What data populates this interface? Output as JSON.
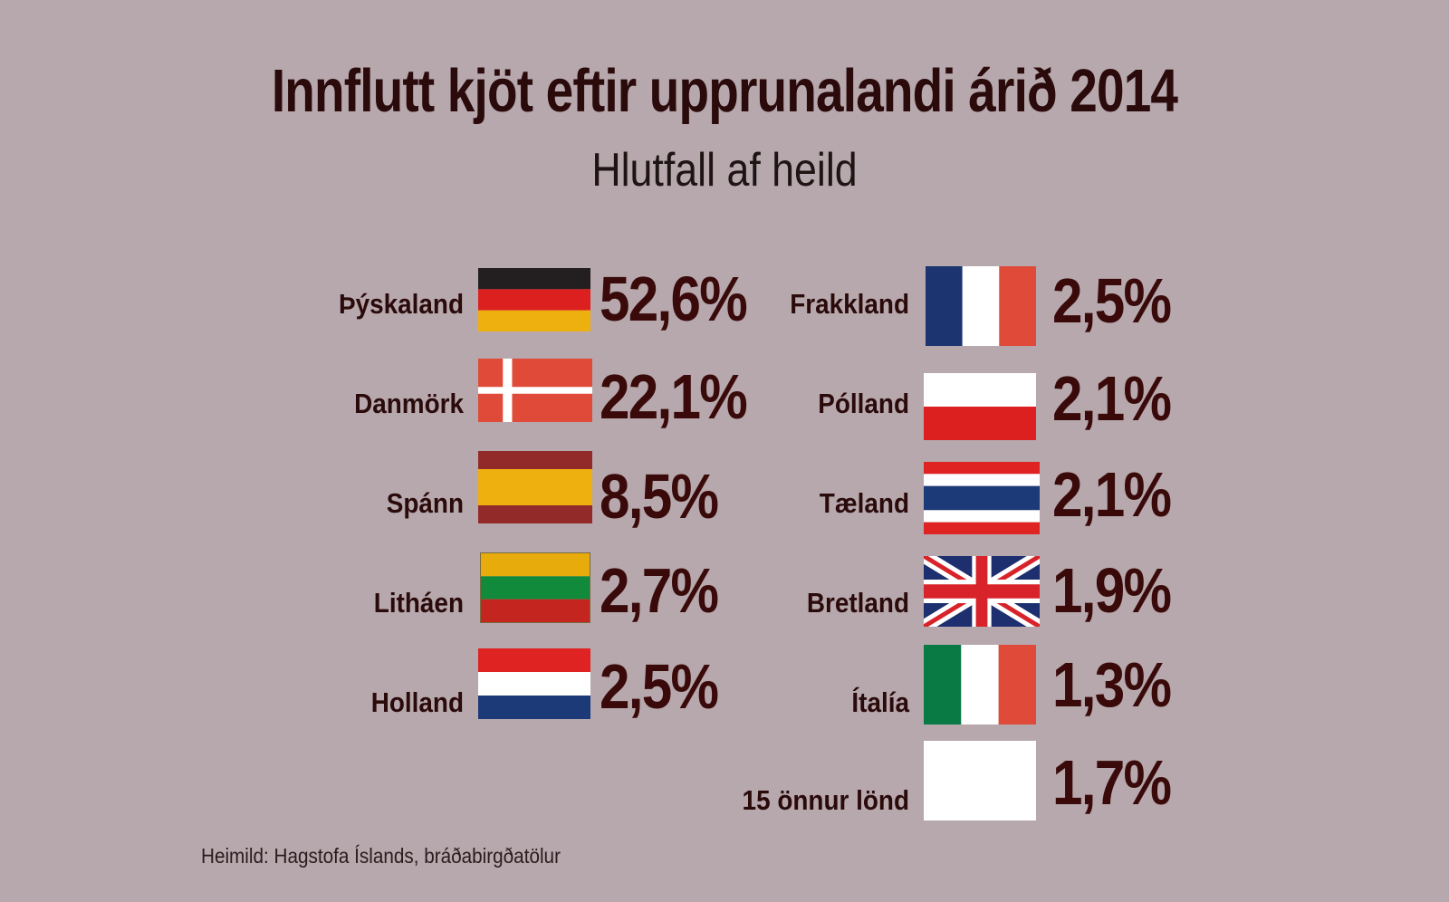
{
  "chart_data": {
    "type": "table",
    "title": "Innflutt kjöt eftir upprunalandi árið 2014",
    "subtitle": "Hlutfall af heild",
    "unit": "%",
    "countries": [
      {
        "name": "Þýskaland",
        "value": 52.6,
        "label": "52,6%",
        "flag": "germany-flag-icon"
      },
      {
        "name": "Danmörk",
        "value": 22.1,
        "label": "22,1%",
        "flag": "denmark-flag-icon"
      },
      {
        "name": "Spánn",
        "value": 8.5,
        "label": "8,5%",
        "flag": "spain-flag-icon"
      },
      {
        "name": "Litháen",
        "value": 2.7,
        "label": "2,7%",
        "flag": "lithuania-flag-icon"
      },
      {
        "name": "Holland",
        "value": 2.5,
        "label": "2,5%",
        "flag": "netherlands-flag-icon"
      },
      {
        "name": "Frakkland",
        "value": 2.5,
        "label": "2,5%",
        "flag": "france-flag-icon"
      },
      {
        "name": "Pólland",
        "value": 2.1,
        "label": "2,1%",
        "flag": "poland-flag-icon"
      },
      {
        "name": "Tæland",
        "value": 2.1,
        "label": "2,1%",
        "flag": "thailand-flag-icon"
      },
      {
        "name": "Bretland",
        "value": 1.9,
        "label": "1,9%",
        "flag": "uk-flag-icon"
      },
      {
        "name": "Ítalía",
        "value": 1.3,
        "label": "1,3%",
        "flag": "italy-flag-icon"
      },
      {
        "name": "15 önnur lönd",
        "value": 1.7,
        "label": "1,7%",
        "flag": "blank-flag-icon"
      }
    ],
    "source": "Heimild: Hagstofa Íslands, bráðabirgðatölur"
  },
  "colors": {
    "background": "#b6a8ad",
    "title": "#2a0a0a",
    "value": "#3a0a0a"
  }
}
